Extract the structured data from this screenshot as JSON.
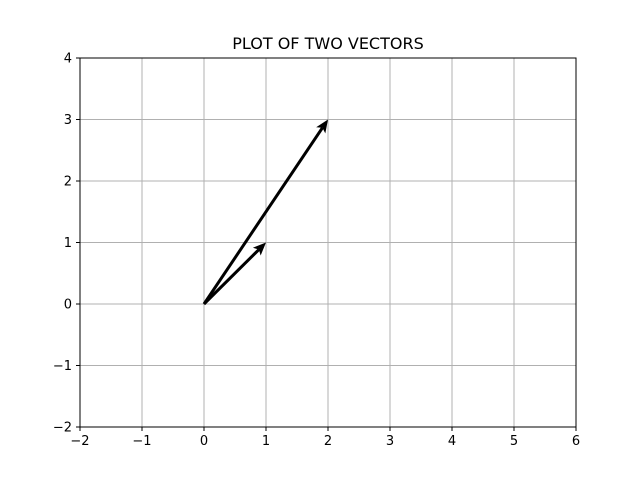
{
  "chart_data": {
    "type": "quiver",
    "title": "PLOT OF TWO VECTORS",
    "xlabel": "",
    "ylabel": "",
    "xlim": [
      -2,
      6
    ],
    "ylim": [
      -2,
      4
    ],
    "grid": true,
    "x_ticks": [
      -2,
      -1,
      0,
      1,
      2,
      3,
      4,
      5,
      6
    ],
    "y_ticks": [
      -2,
      -1,
      0,
      1,
      2,
      3,
      4
    ],
    "x_tick_labels": [
      "−2",
      "−1",
      "0",
      "1",
      "2",
      "3",
      "4",
      "5",
      "6"
    ],
    "y_tick_labels": [
      "−2",
      "−1",
      "0",
      "1",
      "2",
      "3",
      "4"
    ],
    "vectors": [
      {
        "origin": [
          0,
          0
        ],
        "components": [
          1,
          1
        ],
        "color": "#000000"
      },
      {
        "origin": [
          0,
          0
        ],
        "components": [
          2,
          3
        ],
        "color": "#000000"
      }
    ]
  }
}
